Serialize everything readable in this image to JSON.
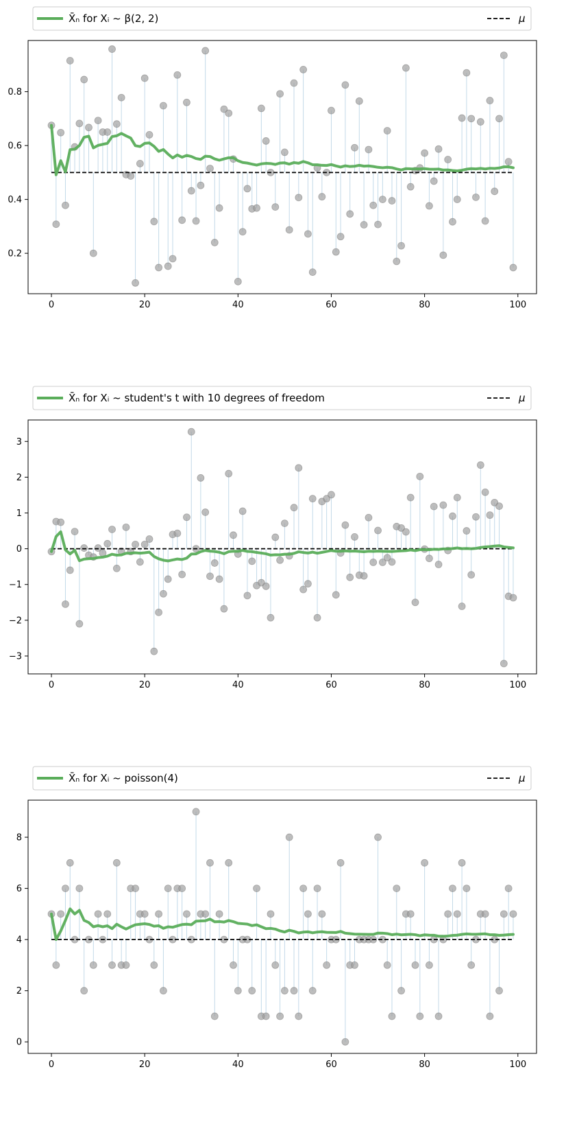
{
  "colors": {
    "mean_line": "#5aad5a",
    "mu_line": "#000000",
    "points": "#999999",
    "stems": "#a9c9df",
    "axes": "#000000",
    "legend_border": "#cccccc"
  },
  "chart_data": [
    {
      "type": "scatter",
      "legend_label": "X̄ₙ for Xᵢ ~ β(2, 2)",
      "legend_mu": "μ",
      "mu": 0.5,
      "xlim": [
        -5,
        104
      ],
      "ylim": [
        0.05,
        0.99
      ],
      "xticks": [
        0,
        20,
        40,
        60,
        80,
        100
      ],
      "yticks": [
        0.2,
        0.4,
        0.6,
        0.8
      ],
      "ytick_labels": [
        "0.2",
        "0.4",
        "0.6",
        "0.8"
      ],
      "values": [
        0.675,
        0.308,
        0.648,
        0.378,
        0.915,
        0.595,
        0.682,
        0.845,
        0.667,
        0.2,
        0.693,
        0.65,
        0.65,
        0.958,
        0.68,
        0.778,
        0.492,
        0.487,
        0.09,
        0.533,
        0.85,
        0.64,
        0.318,
        0.147,
        0.748,
        0.152,
        0.18,
        0.862,
        0.323,
        0.76,
        0.432,
        0.32,
        0.452,
        0.952,
        0.515,
        0.24,
        0.368,
        0.735,
        0.72,
        0.55,
        0.095,
        0.28,
        0.44,
        0.365,
        0.368,
        0.738,
        0.617,
        0.5,
        0.372,
        0.792,
        0.575,
        0.287,
        0.832,
        0.407,
        0.882,
        0.272,
        0.13,
        0.517,
        0.41,
        0.5,
        0.73,
        0.205,
        0.262,
        0.825,
        0.346,
        0.592,
        0.765,
        0.306,
        0.585,
        0.378,
        0.307,
        0.4,
        0.655,
        0.395,
        0.17,
        0.228,
        0.888,
        0.447,
        0.507,
        0.517,
        0.572,
        0.376,
        0.468,
        0.587,
        0.193,
        0.548,
        0.317,
        0.4,
        0.702,
        0.87,
        0.7,
        0.408,
        0.688,
        0.32,
        0.767,
        0.43,
        0.7,
        0.935,
        0.54,
        0.147
      ]
    },
    {
      "type": "scatter",
      "legend_label": "X̄ₙ for Xᵢ ~ student's t with 10 degrees of freedom",
      "legend_mu": "μ",
      "mu": 0,
      "xlim": [
        -5,
        104
      ],
      "ylim": [
        -3.5,
        3.6
      ],
      "xticks": [
        0,
        20,
        40,
        60,
        80,
        100
      ],
      "yticks": [
        -3,
        -2,
        -1,
        0,
        1,
        2,
        3
      ],
      "ytick_labels": [
        "−3",
        "−2",
        "−1",
        "0",
        "1",
        "2",
        "3"
      ],
      "values": [
        -0.08,
        0.76,
        0.74,
        -1.55,
        -0.6,
        0.48,
        -2.1,
        0.02,
        -0.18,
        -0.23,
        0.02,
        -0.12,
        0.14,
        0.54,
        -0.55,
        -0.07,
        0.6,
        -0.08,
        0.12,
        -0.37,
        0.12,
        0.27,
        -2.87,
        -1.78,
        -1.26,
        -0.85,
        0.4,
        0.43,
        -0.72,
        0.88,
        3.27,
        0.0,
        1.98,
        1.02,
        -0.77,
        -0.4,
        -0.85,
        -1.68,
        2.1,
        0.38,
        -0.15,
        1.05,
        -1.31,
        -0.35,
        -1.03,
        -0.95,
        -1.05,
        -1.93,
        0.32,
        -0.32,
        0.71,
        -0.2,
        1.15,
        2.26,
        -1.14,
        -0.98,
        1.4,
        -1.93,
        1.32,
        1.4,
        1.51,
        -1.29,
        -0.12,
        0.66,
        -0.8,
        0.33,
        -0.74,
        -0.76,
        0.87,
        -0.38,
        0.51,
        -0.38,
        -0.25,
        -0.37,
        0.62,
        0.58,
        0.47,
        1.43,
        -1.5,
        2.02,
        -0.01,
        -0.27,
        1.18,
        -0.44,
        1.22,
        -0.05,
        0.91,
        1.43,
        -1.61,
        0.5,
        -0.73,
        0.89,
        2.34,
        1.58,
        0.94,
        1.29,
        1.19,
        -3.21,
        -1.33,
        -1.37
      ]
    },
    {
      "type": "scatter",
      "legend_label": "X̄ₙ for Xᵢ ~ poisson(4)",
      "legend_mu": "μ",
      "mu": 4,
      "xlim": [
        -5,
        104
      ],
      "ylim": [
        -0.45,
        9.45
      ],
      "xticks": [
        0,
        20,
        40,
        60,
        80,
        100
      ],
      "yticks": [
        0,
        2,
        4,
        6,
        8
      ],
      "ytick_labels": [
        "0",
        "2",
        "4",
        "6",
        "8"
      ],
      "values": [
        5,
        3,
        5,
        6,
        7,
        4,
        6,
        2,
        4,
        3,
        5,
        4,
        5,
        3,
        7,
        3,
        3,
        6,
        6,
        5,
        5,
        4,
        3,
        5,
        2,
        6,
        4,
        6,
        6,
        5,
        4,
        9,
        5,
        5,
        7,
        1,
        5,
        4,
        7,
        3,
        2,
        4,
        4,
        2,
        6,
        1,
        1,
        5,
        3,
        1,
        2,
        8,
        2,
        1,
        6,
        5,
        2,
        6,
        5,
        3,
        4,
        4,
        7,
        0,
        3,
        3,
        4,
        4,
        4,
        4,
        8,
        4,
        3,
        1,
        6,
        2,
        5,
        5,
        3,
        1,
        7,
        3,
        4,
        1,
        4,
        5,
        6,
        5,
        7,
        6,
        3,
        4,
        5,
        5,
        1,
        4,
        2,
        5,
        6,
        5
      ]
    }
  ],
  "x_tick_labels": [
    "0",
    "20",
    "40",
    "60",
    "80",
    "100"
  ]
}
